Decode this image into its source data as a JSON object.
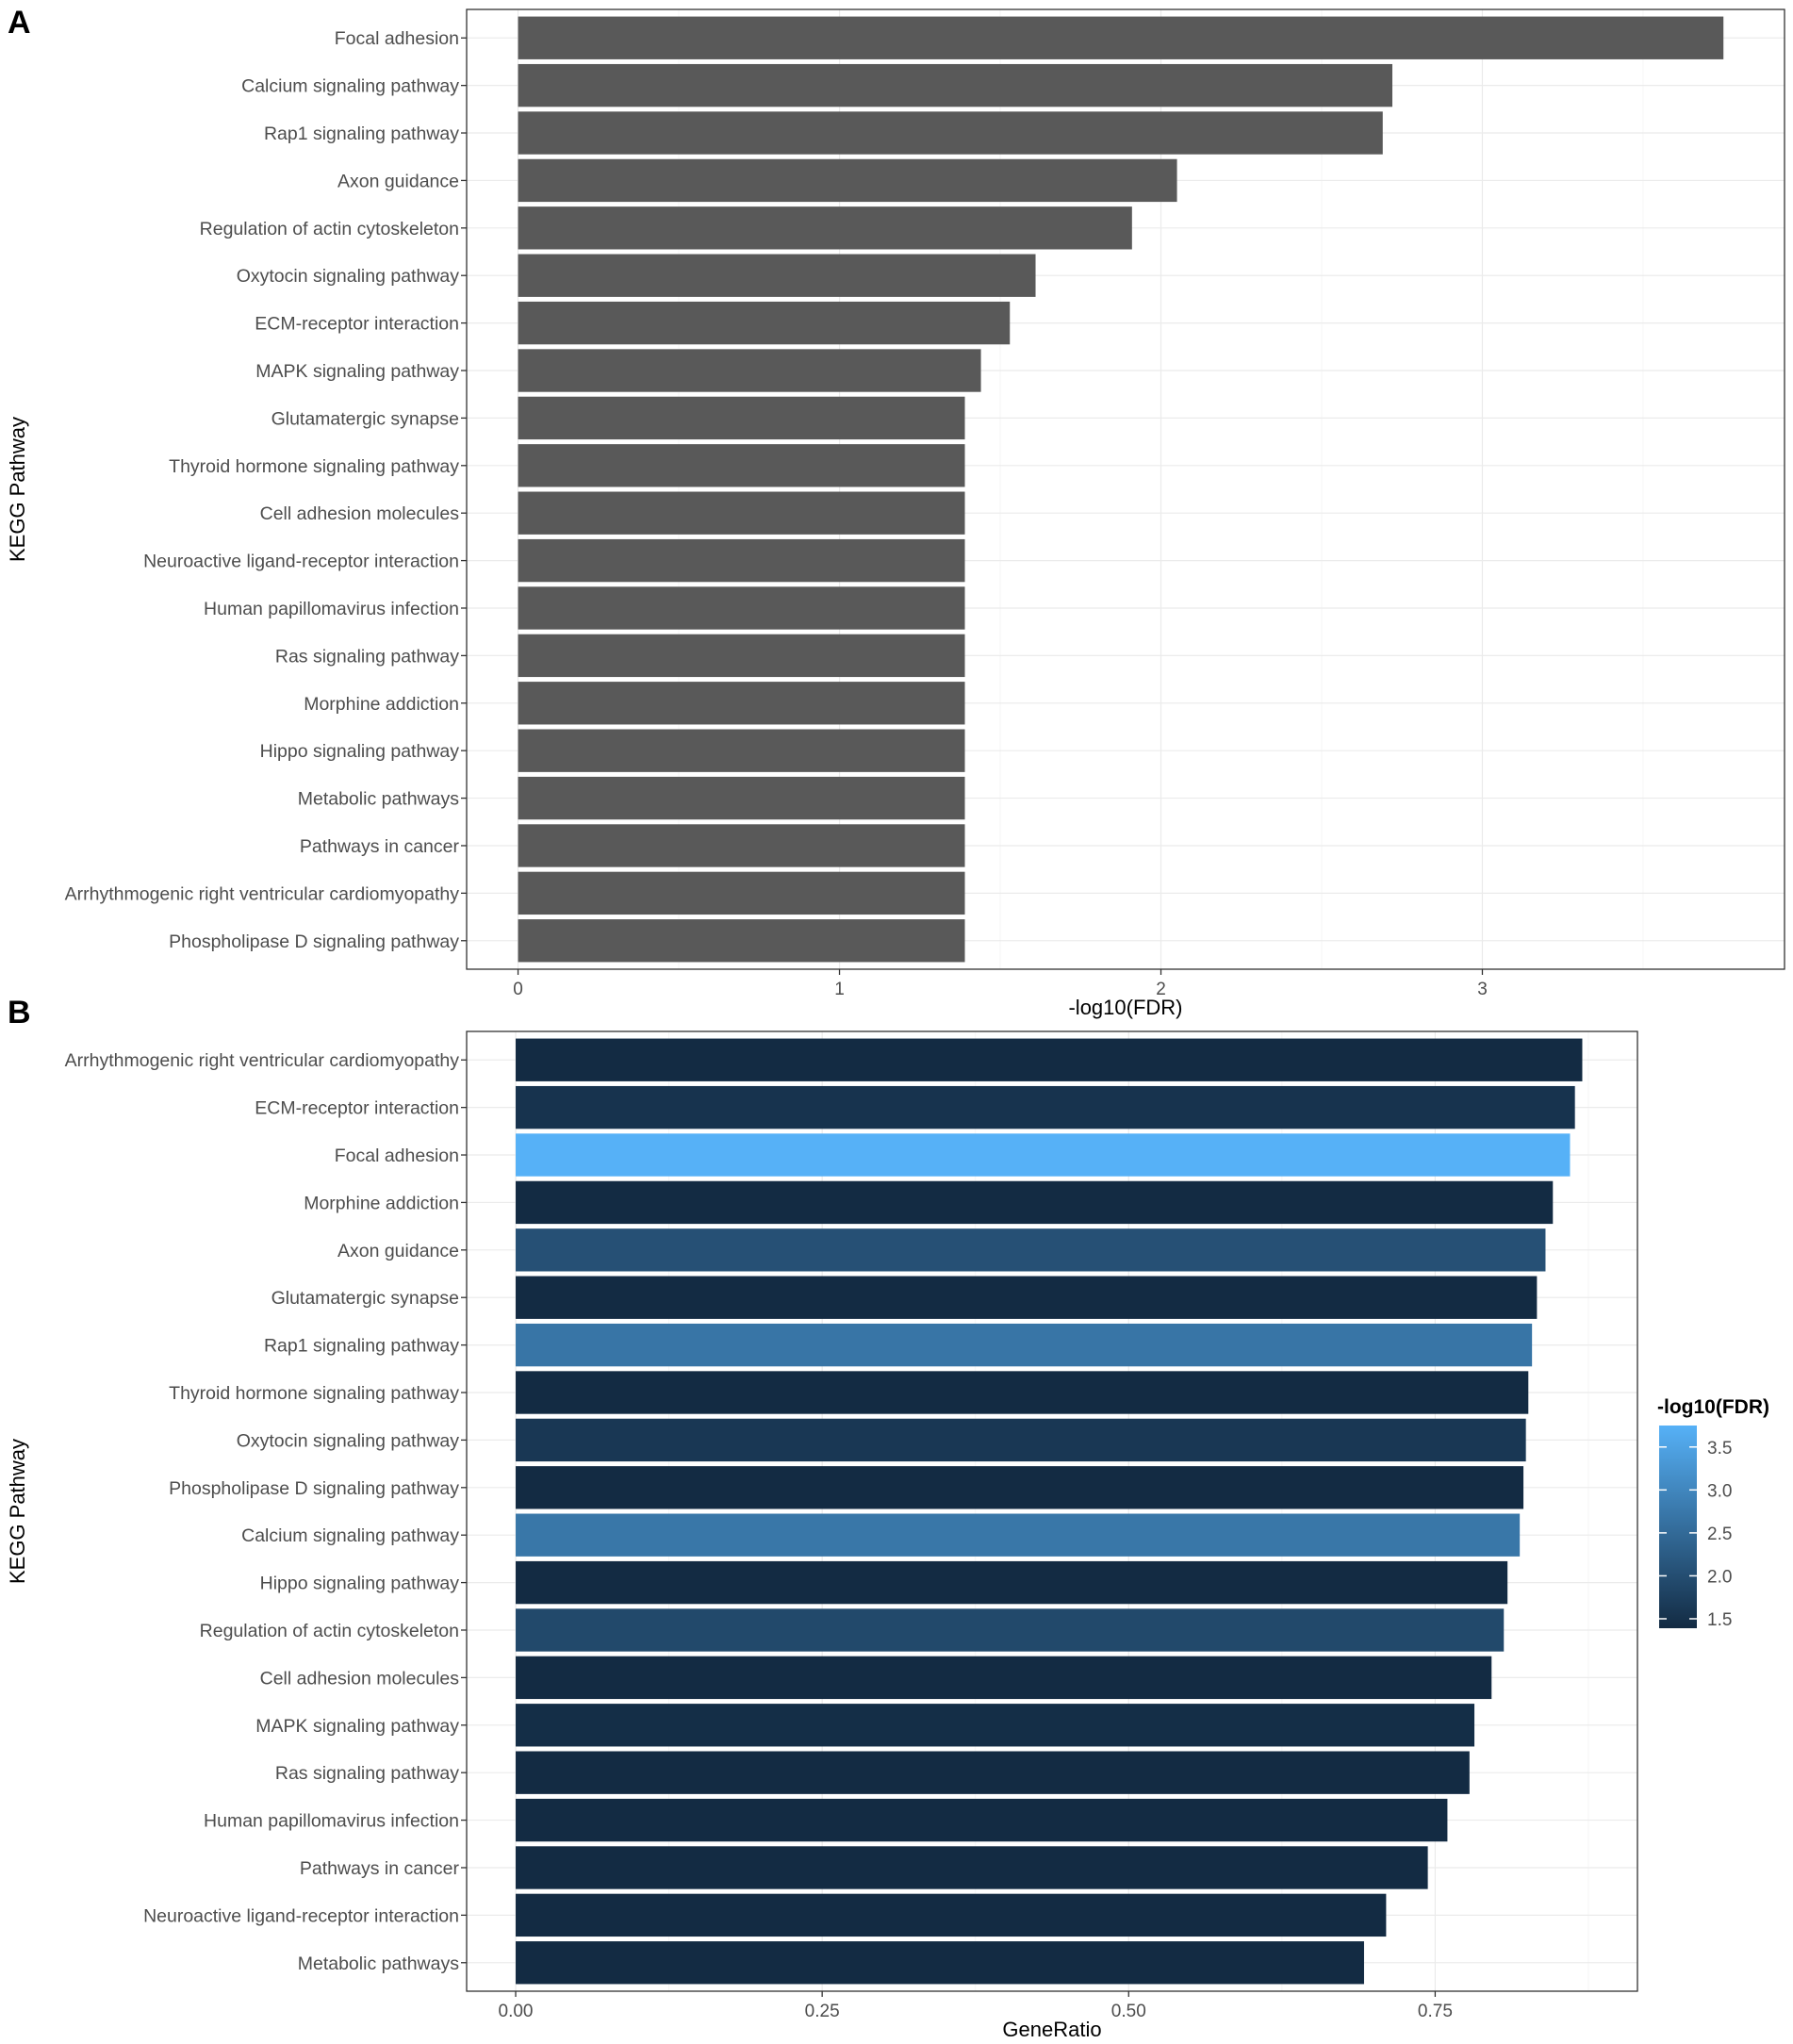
{
  "colors": {
    "bar_a": "#595959",
    "gradient_low": "#132B43",
    "gradient_high": "#56B1F7",
    "grid": "#ebebeb",
    "border": "#333333"
  },
  "chart_data": [
    {
      "panel": "A",
      "type": "bar",
      "orientation": "horizontal",
      "xlabel": "-log10(FDR)",
      "ylabel": "KEGG Pathway",
      "xlim": [
        -0.16,
        3.94
      ],
      "xticks": [
        0,
        1,
        2,
        3
      ],
      "xtick_labels": [
        "0",
        "1",
        "2",
        "3"
      ],
      "categories": [
        "Focal adhesion",
        "Calcium signaling pathway",
        "Rap1 signaling pathway",
        "Axon guidance",
        "Regulation of actin cytoskeleton",
        "Oxytocin signaling pathway",
        "ECM-receptor interaction",
        "MAPK signaling pathway",
        "Glutamatergic synapse",
        "Thyroid hormone signaling pathway",
        "Cell adhesion molecules",
        "Neuroactive ligand-receptor interaction",
        "Human papillomavirus infection",
        "Ras signaling pathway",
        "Morphine addiction",
        "Hippo signaling pathway",
        "Metabolic pathways",
        "Pathways in cancer",
        "Arrhythmogenic right ventricular cardiomyopathy",
        "Phospholipase D signaling pathway"
      ],
      "values": [
        3.75,
        2.72,
        2.69,
        2.05,
        1.91,
        1.61,
        1.53,
        1.44,
        1.39,
        1.39,
        1.39,
        1.39,
        1.39,
        1.39,
        1.39,
        1.39,
        1.39,
        1.39,
        1.39,
        1.39
      ]
    },
    {
      "panel": "B",
      "type": "bar",
      "orientation": "horizontal",
      "xlabel": "GeneRatio",
      "ylabel": "KEGG Pathway",
      "xlim": [
        -0.04,
        0.915
      ],
      "xticks": [
        0,
        0.25,
        0.5,
        0.75
      ],
      "xtick_labels": [
        "0.00",
        "0.25",
        "0.50",
        "0.75"
      ],
      "categories": [
        "Arrhythmogenic right ventricular cardiomyopathy",
        "ECM-receptor interaction",
        "Focal adhesion",
        "Morphine addiction",
        "Axon guidance",
        "Glutamatergic synapse",
        "Rap1 signaling pathway",
        "Thyroid hormone signaling pathway",
        "Oxytocin signaling pathway",
        "Phospholipase D signaling pathway",
        "Calcium signaling pathway",
        "Hippo signaling pathway",
        "Regulation of actin cytoskeleton",
        "Cell adhesion molecules",
        "MAPK signaling pathway",
        "Ras signaling pathway",
        "Human papillomavirus infection",
        "Pathways in cancer",
        "Neuroactive ligand-receptor interaction",
        "Metabolic pathways"
      ],
      "values": [
        0.87,
        0.864,
        0.86,
        0.846,
        0.84,
        0.833,
        0.829,
        0.826,
        0.824,
        0.822,
        0.819,
        0.809,
        0.806,
        0.796,
        0.782,
        0.778,
        0.76,
        0.744,
        0.71,
        0.692
      ],
      "color_values": [
        1.39,
        1.53,
        3.75,
        1.39,
        2.05,
        1.39,
        2.69,
        1.39,
        1.61,
        1.39,
        2.72,
        1.39,
        1.91,
        1.39,
        1.44,
        1.39,
        1.39,
        1.39,
        1.39,
        1.39
      ],
      "colorbar": {
        "title": "-log10(FDR)",
        "range": [
          1.39,
          3.75
        ],
        "ticks": [
          1.5,
          2.0,
          2.5,
          3.0,
          3.5
        ],
        "tick_labels": [
          "1.5",
          "2.0",
          "2.5",
          "3.0",
          "3.5"
        ]
      }
    }
  ]
}
